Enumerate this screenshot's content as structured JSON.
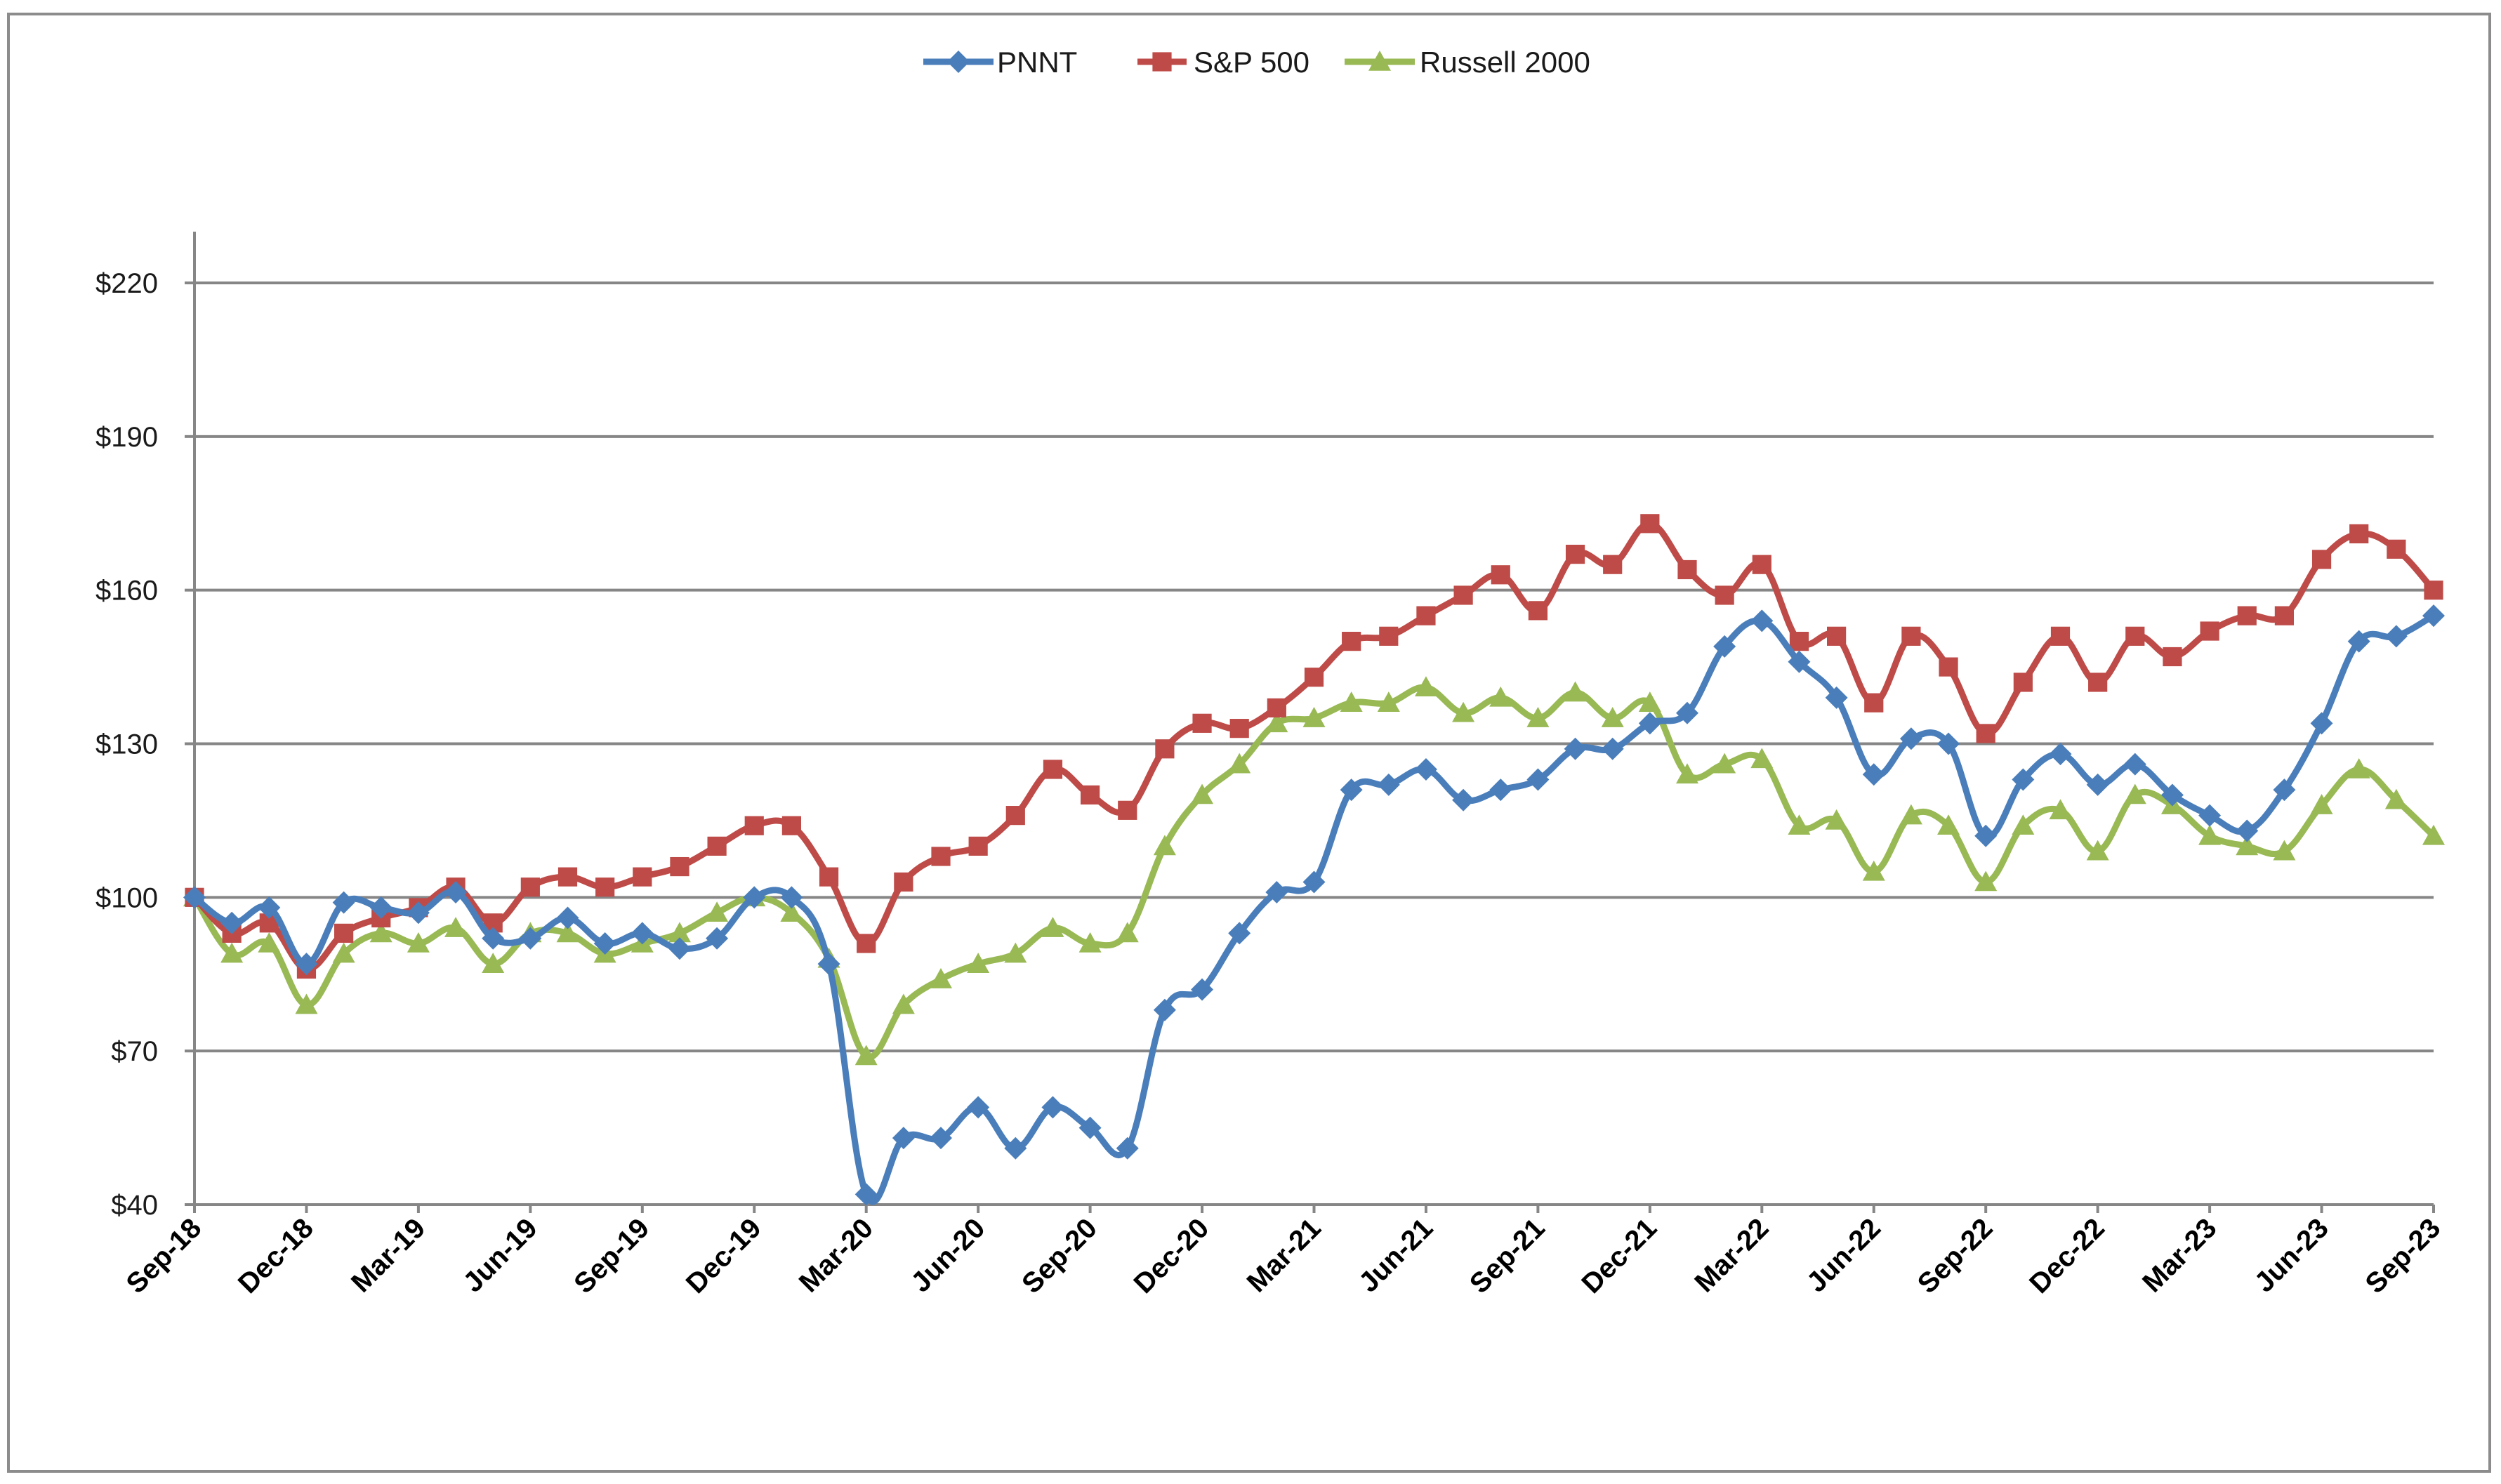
{
  "chart_data": {
    "type": "line",
    "title": "",
    "xlabel": "",
    "ylabel": "",
    "ylim": [
      40,
      220
    ],
    "y_ticks": [
      "$40",
      "$70",
      "$100",
      "$130",
      "$160",
      "$190",
      "$220"
    ],
    "y_tick_values": [
      40,
      70,
      100,
      130,
      160,
      190,
      220
    ],
    "x": [
      "Sep-18",
      "Oct-18",
      "Nov-18",
      "Dec-18",
      "Jan-19",
      "Feb-19",
      "Mar-19",
      "Apr-19",
      "May-19",
      "Jun-19",
      "Jul-19",
      "Aug-19",
      "Sep-19",
      "Oct-19",
      "Nov-19",
      "Dec-19",
      "Jan-20",
      "Feb-20",
      "Mar-20",
      "Apr-20",
      "May-20",
      "Jun-20",
      "Jul-20",
      "Aug-20",
      "Sep-20",
      "Oct-20",
      "Nov-20",
      "Dec-20",
      "Jan-21",
      "Feb-21",
      "Mar-21",
      "Apr-21",
      "May-21",
      "Jun-21",
      "Jul-21",
      "Aug-21",
      "Sep-21",
      "Oct-21",
      "Nov-21",
      "Dec-21",
      "Jan-22",
      "Feb-22",
      "Mar-22",
      "Apr-22",
      "May-22",
      "Jun-22",
      "Jul-22",
      "Aug-22",
      "Sep-22",
      "Oct-22",
      "Nov-22",
      "Dec-22",
      "Jan-23",
      "Feb-23",
      "Mar-23",
      "Apr-23",
      "May-23",
      "Jun-23",
      "Jul-23",
      "Aug-23",
      "Sep-23"
    ],
    "x_tick_labels": [
      "Sep-18",
      "Dec-18",
      "Mar-19",
      "Jun-19",
      "Sep-19",
      "Dec-19",
      "Mar-20",
      "Jun-20",
      "Sep-20",
      "Dec-20",
      "Mar-21",
      "Jun-21",
      "Sep-21",
      "Dec-21",
      "Mar-22",
      "Jun-22",
      "Sep-22",
      "Dec-22",
      "Mar-23",
      "Jun-23",
      "Sep-23"
    ],
    "legend_position": "top-center",
    "grid": "horizontal",
    "series": [
      {
        "name": "PNNT",
        "color": "#4a7ebb",
        "marker": "diamond",
        "values": [
          100,
          95,
          98,
          87,
          99,
          98,
          97,
          101,
          92,
          92,
          96,
          91,
          93,
          90,
          92,
          100,
          100,
          87,
          42,
          53,
          53,
          59,
          51,
          59,
          55,
          51,
          78,
          82,
          93,
          101,
          103,
          121,
          122,
          125,
          119,
          121,
          123,
          129,
          129,
          134,
          136,
          149,
          154,
          146,
          139,
          124,
          131,
          130,
          112,
          123,
          128,
          122,
          126,
          120,
          116,
          113,
          121,
          134,
          150,
          151,
          155
        ]
      },
      {
        "name": "S&P 500",
        "color": "#be4b48",
        "marker": "square",
        "values": [
          100,
          93,
          95,
          86,
          93,
          96,
          98,
          102,
          95,
          102,
          104,
          102,
          104,
          106,
          110,
          114,
          114,
          104,
          91,
          103,
          108,
          110,
          116,
          125,
          120,
          117,
          129,
          134,
          133,
          137,
          143,
          150,
          151,
          155,
          159,
          163,
          156,
          167,
          165,
          173,
          164,
          159,
          165,
          150,
          151,
          138,
          151,
          145,
          132,
          142,
          151,
          142,
          151,
          147,
          152,
          155,
          155,
          166,
          171,
          168,
          160
        ]
      },
      {
        "name": "Russell 2000",
        "color": "#98b954",
        "marker": "triangle",
        "values": [
          100,
          89,
          91,
          79,
          89,
          93,
          91,
          94,
          87,
          93,
          93,
          89,
          91,
          93,
          97,
          100,
          97,
          88,
          69,
          79,
          84,
          87,
          89,
          94,
          91,
          93,
          110,
          120,
          126,
          134,
          135,
          138,
          138,
          141,
          136,
          139,
          135,
          140,
          135,
          138,
          124,
          126,
          127,
          114,
          115,
          105,
          116,
          114,
          103,
          114,
          117,
          109,
          120,
          118,
          112,
          110,
          109,
          118,
          125,
          119,
          112
        ]
      }
    ]
  }
}
